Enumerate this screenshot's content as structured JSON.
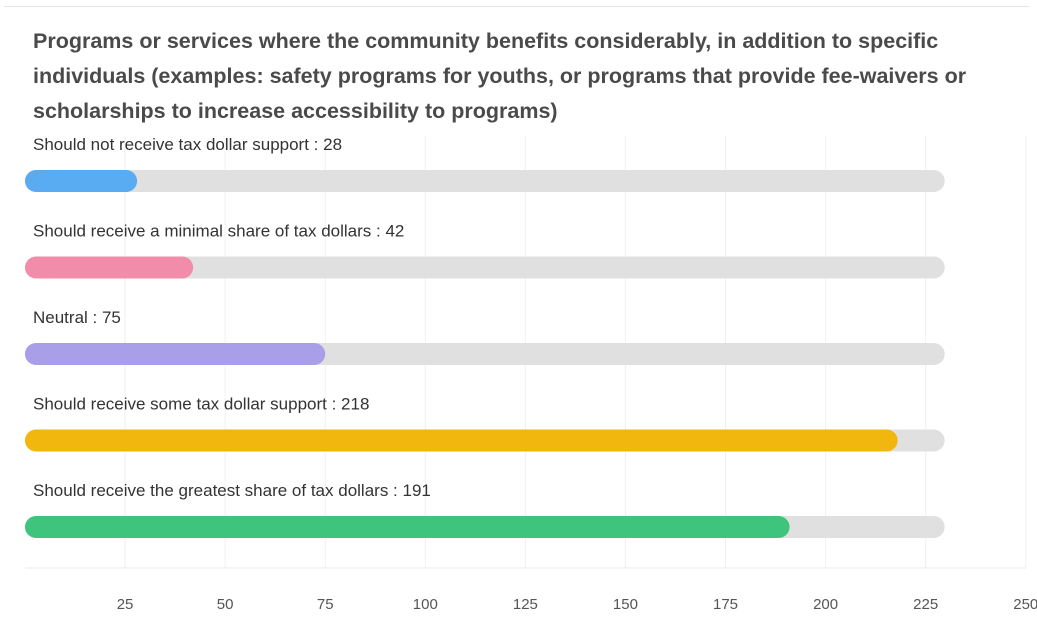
{
  "chart_data": {
    "type": "bar",
    "orientation": "horizontal",
    "title": "Programs or services where the community benefits considerably, in addition to specific individuals (examples: safety programs for youths, or programs that provide fee-waivers or scholarships to increase accessibility to programs)",
    "categories": [
      "Should not receive tax dollar support",
      "Should receive a minimal share of tax dollars",
      "Neutral",
      "Should receive some tax dollar support",
      "Should receive the greatest share of tax dollars"
    ],
    "values": [
      28,
      42,
      75,
      218,
      191
    ],
    "colors": [
      "#5aacf2",
      "#f28cab",
      "#a99ee8",
      "#f2b70f",
      "#3ec47c"
    ],
    "track_color": "#e0e0e0",
    "xlim": [
      0,
      250
    ],
    "xticks": [
      25,
      50,
      75,
      100,
      125,
      150,
      175,
      200,
      225,
      250
    ],
    "track_max": 227,
    "grid": true,
    "xlabel": "",
    "ylabel": ""
  }
}
